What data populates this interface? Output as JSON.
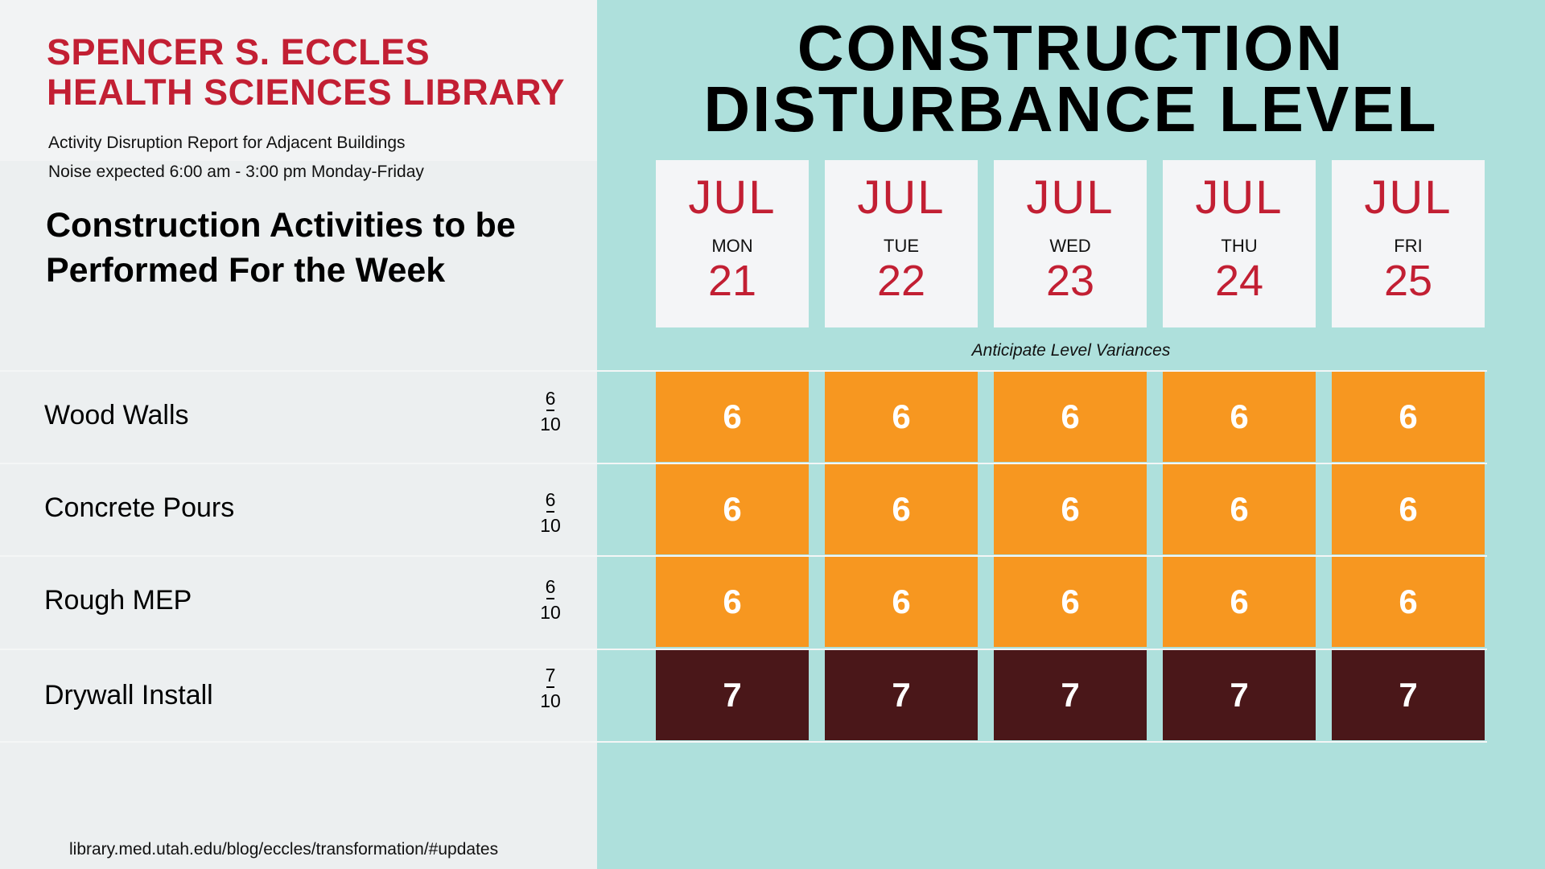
{
  "library": {
    "line1": "SPENCER S. ECCLES",
    "line2": "HEALTH SCIENCES LIBRARY"
  },
  "subtitle": {
    "line1": "Activity Disruption Report for Adjacent Buildings",
    "line2": "Noise expected 6:00 am - 3:00 pm Monday-Friday"
  },
  "activities_heading": "Construction Activities to be Performed For the Week",
  "main_title": {
    "line1": "CONSTRUCTION",
    "line2": "DISTURBANCE LEVEL"
  },
  "days": [
    {
      "month": "JUL",
      "weekday": "MON",
      "date": "21"
    },
    {
      "month": "JUL",
      "weekday": "TUE",
      "date": "22"
    },
    {
      "month": "JUL",
      "weekday": "WED",
      "date": "23"
    },
    {
      "month": "JUL",
      "weekday": "THU",
      "date": "24"
    },
    {
      "month": "JUL",
      "weekday": "FRI",
      "date": "25"
    }
  ],
  "variance_note": "Anticipate Level Variances",
  "activities": [
    {
      "name": "Wood Walls",
      "level": "6",
      "max": "10",
      "daily": [
        "6",
        "6",
        "6",
        "6",
        "6"
      ]
    },
    {
      "name": "Concrete Pours",
      "level": "6",
      "max": "10",
      "daily": [
        "6",
        "6",
        "6",
        "6",
        "6"
      ]
    },
    {
      "name": "Rough MEP",
      "level": "6",
      "max": "10",
      "daily": [
        "6",
        "6",
        "6",
        "6",
        "6"
      ]
    },
    {
      "name": "Drywall Install",
      "level": "7",
      "max": "10",
      "daily": [
        "7",
        "7",
        "7",
        "7",
        "7"
      ]
    }
  ],
  "level_colors": {
    "6": "#f79720",
    "7": "#4a1719"
  },
  "footer_url": "library.med.utah.edu/blog/eccles/transformation/#updates"
}
